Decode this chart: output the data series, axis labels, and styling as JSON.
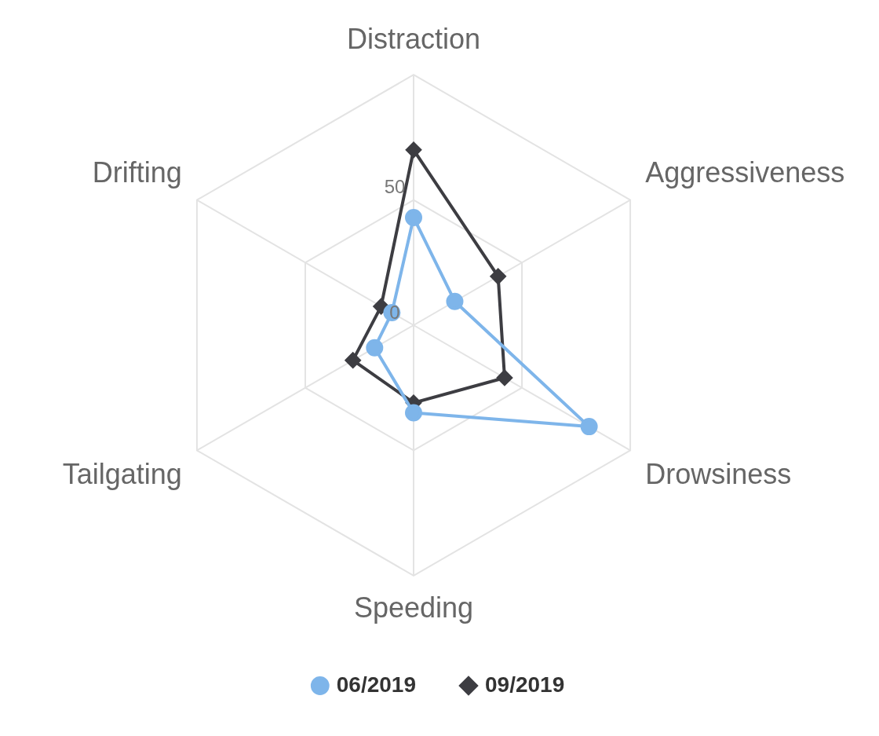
{
  "chart_data": {
    "type": "radar",
    "categories": [
      "Distraction",
      "Aggressiveness",
      "Drowsiness",
      "Speeding",
      "Tailgating",
      "Drifting"
    ],
    "series": [
      {
        "name": "06/2019",
        "color": "#7eb5ea",
        "marker": "circle",
        "values": [
          43,
          19,
          81,
          35,
          18,
          10
        ]
      },
      {
        "name": "09/2019",
        "color": "#3d3d42",
        "marker": "diamond",
        "values": [
          70,
          39,
          42,
          31,
          28,
          15
        ]
      }
    ],
    "ylim": [
      0,
      100
    ],
    "yticks": [
      0,
      50
    ],
    "grid": true,
    "legend": "bottom"
  }
}
